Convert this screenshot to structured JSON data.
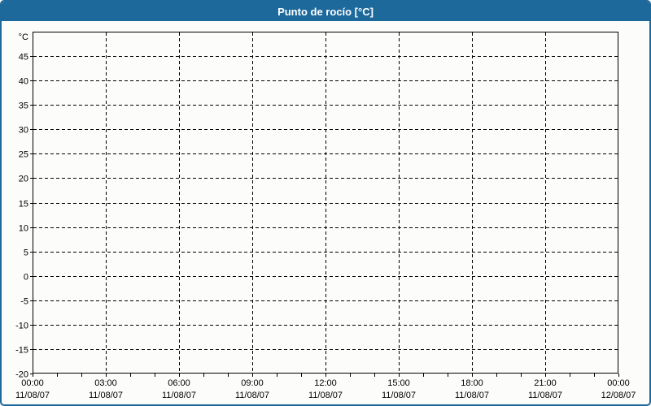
{
  "window": {
    "title": "Punto de rocío [°C]"
  },
  "colors": {
    "header_bg": "#1e699c",
    "header_text": "#ffffff",
    "outer_border": "#1e699c",
    "background": "#fcfdfa",
    "plot_background": "#fcfdfa",
    "grid": "#000000",
    "axis": "#000000",
    "tick_label": "#000000"
  },
  "chart_data": {
    "type": "line",
    "title": "Punto de rocío [°C]",
    "ylabel": "°C",
    "grid": "both-dashed",
    "legend": null,
    "series": [],
    "y_axis": {
      "unit_label": "°C",
      "min": -20,
      "max": 50,
      "tick_step": 5,
      "tick_values": [
        45,
        40,
        35,
        30,
        25,
        20,
        15,
        10,
        5,
        0,
        -5,
        -10,
        -15,
        -20
      ]
    },
    "x_axis": {
      "span_hours": 24,
      "minor_tick_hours": 1,
      "major_tick_hours": 3,
      "major_ticks": [
        {
          "time": "00:00",
          "date": "11/08/07"
        },
        {
          "time": "03:00",
          "date": "11/08/07"
        },
        {
          "time": "06:00",
          "date": "11/08/07"
        },
        {
          "time": "09:00",
          "date": "11/08/07"
        },
        {
          "time": "12:00",
          "date": "11/08/07"
        },
        {
          "time": "15:00",
          "date": "11/08/07"
        },
        {
          "time": "18:00",
          "date": "11/08/07"
        },
        {
          "time": "21:00",
          "date": "11/08/07"
        },
        {
          "time": "00:00",
          "date": "12/08/07"
        }
      ]
    }
  }
}
